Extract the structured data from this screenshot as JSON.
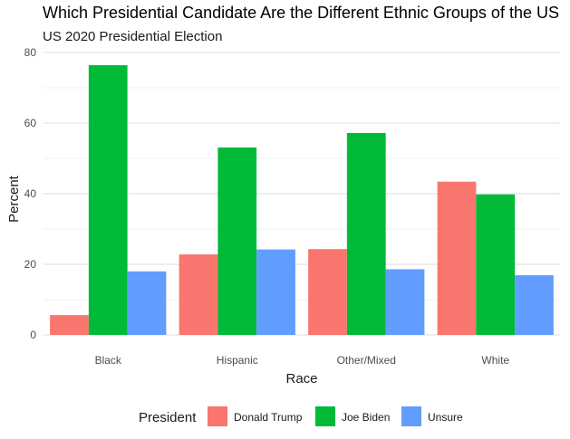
{
  "chart_data": {
    "type": "bar",
    "title": "Which Presidential Candidate Are the Different Ethnic Groups of the US",
    "subtitle": "US 2020 Presidential Election",
    "xlabel": "Race",
    "ylabel": "Percent",
    "ylim": [
      0,
      80
    ],
    "yticks": [
      0,
      20,
      40,
      60,
      80
    ],
    "grid": true,
    "legend_title": "President",
    "legend_position": "bottom",
    "categories": [
      "Black",
      "Hispanic",
      "Other/Mixed",
      "White"
    ],
    "series": [
      {
        "name": "Donald Trump",
        "color": "#F8766D",
        "values": [
          5.6,
          22.8,
          24.3,
          43.4
        ]
      },
      {
        "name": "Joe Biden",
        "color": "#00BA38",
        "values": [
          76.4,
          53.1,
          57.2,
          39.8
        ]
      },
      {
        "name": "Unsure",
        "color": "#619CFF",
        "values": [
          18.0,
          24.2,
          18.6,
          16.9
        ]
      }
    ]
  }
}
